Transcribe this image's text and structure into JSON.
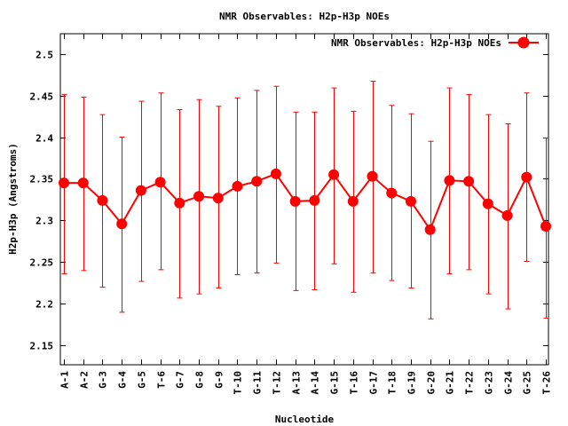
{
  "chart_data": {
    "type": "line",
    "title": "NMR Observables: H2p-H3p NOEs",
    "xlabel": "Nucleotide",
    "ylabel": "H2p-H3p (Angstroms)",
    "ylim": [
      2.127,
      2.524
    ],
    "yticks": [
      2.15,
      2.2,
      2.25,
      2.3,
      2.35,
      2.4,
      2.45,
      2.5
    ],
    "ytick_labels": [
      "2.15",
      "2.2",
      "2.25",
      "2.3",
      "2.35",
      "2.4",
      "2.45",
      "2.5"
    ],
    "grid": false,
    "legend": {
      "position": "top-right",
      "entries": [
        "NMR Observables: H2p-H3p NOEs"
      ]
    },
    "categories": [
      "A-1",
      "A-2",
      "G-3",
      "G-4",
      "G-5",
      "T-6",
      "G-7",
      "G-8",
      "G-9",
      "T-10",
      "G-11",
      "T-12",
      "A-13",
      "A-14",
      "G-15",
      "T-16",
      "G-17",
      "T-18",
      "G-19",
      "G-20",
      "G-21",
      "T-22",
      "G-23",
      "G-24",
      "G-25",
      "T-26"
    ],
    "series": [
      {
        "name": "NMR Observables: H2p-H3p NOEs",
        "color": "#ff0000",
        "values": [
          2.345,
          2.345,
          2.324,
          2.296,
          2.336,
          2.346,
          2.321,
          2.329,
          2.327,
          2.341,
          2.347,
          2.356,
          2.323,
          2.324,
          2.355,
          2.323,
          2.353,
          2.333,
          2.323,
          2.289,
          2.348,
          2.347,
          2.32,
          2.306,
          2.352,
          2.293
        ],
        "err_high": [
          2.451,
          2.448,
          2.427,
          2.4,
          2.443,
          2.453,
          2.433,
          2.445,
          2.437,
          2.447,
          2.456,
          2.461,
          2.43,
          2.43,
          2.459,
          2.431,
          2.467,
          2.438,
          2.428,
          2.395,
          2.459,
          2.451,
          2.427,
          2.416,
          2.453,
          2.399
        ],
        "err_low": [
          2.236,
          2.24,
          2.22,
          2.19,
          2.227,
          2.241,
          2.207,
          2.212,
          2.219,
          2.235,
          2.237,
          2.249,
          2.216,
          2.217,
          2.248,
          2.214,
          2.237,
          2.228,
          2.219,
          2.182,
          2.236,
          2.241,
          2.212,
          2.194,
          2.251,
          2.183
        ]
      }
    ]
  }
}
